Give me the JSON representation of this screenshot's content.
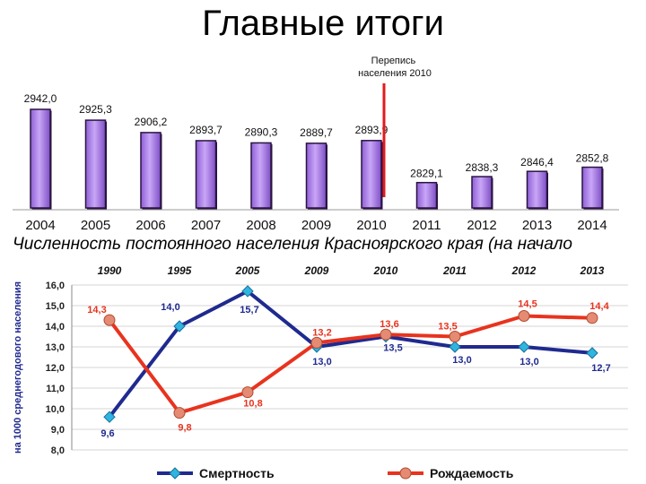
{
  "page": {
    "title": "Главные итоги",
    "caption": "Численность постоянного населения Красноярского края (на начало"
  },
  "colors": {
    "bar_fill": "#b68cf0",
    "bar_dark": "#2a1440",
    "census_line": "#e31a1c",
    "mortality": "#1f2a8f",
    "mortality_marker": "#2fb5e0",
    "birth": "#e8331e",
    "birth_marker": "#e58b73"
  },
  "chart_data": [
    {
      "type": "bar",
      "categories": [
        "2004",
        "2005",
        "2006",
        "2007",
        "2008",
        "2009",
        "2010",
        "2011",
        "2012",
        "2013",
        "2014"
      ],
      "values": [
        2942.0,
        2925.3,
        2906.2,
        2893.7,
        2890.3,
        2889.7,
        2893.9,
        2829.1,
        2838.3,
        2846.4,
        2852.8
      ],
      "value_labels": [
        "2942,0",
        "2925,3",
        "2906,2",
        "2893,7",
        "2890,3",
        "2889,7",
        "2893,9",
        "2829,1",
        "2838,3",
        "2846,4",
        "2852,8"
      ],
      "annotation": "Перепись\nнаселения 2010",
      "grid": false
    },
    {
      "type": "line",
      "categories": [
        "1990",
        "1995",
        "2005",
        "2009",
        "2010",
        "2011",
        "2012",
        "2013"
      ],
      "ylabel": "на 1000 среднегодового населения",
      "ylim": [
        8.0,
        16.0
      ],
      "yticks": [
        "8,0",
        "9,0",
        "10,0",
        "11,0",
        "12,0",
        "13,0",
        "14,0",
        "15,0",
        "16,0"
      ],
      "grid": true,
      "legend_position": "bottom",
      "series": [
        {
          "name": "Смертность",
          "values": [
            9.6,
            14.0,
            15.7,
            13.0,
            13.5,
            13.0,
            13.0,
            12.7
          ],
          "labels": [
            "9,6",
            "14,0",
            "15,7",
            "13,0",
            "13,5",
            "13,0",
            "13,0",
            "12,7"
          ]
        },
        {
          "name": "Рождаемость",
          "values": [
            14.3,
            9.8,
            10.8,
            13.2,
            13.6,
            13.5,
            14.5,
            14.4
          ],
          "labels": [
            "14,3",
            "9,8",
            "10,8",
            "13,2",
            "13,6",
            "13,5",
            "14,5",
            "14,4"
          ]
        }
      ]
    }
  ]
}
